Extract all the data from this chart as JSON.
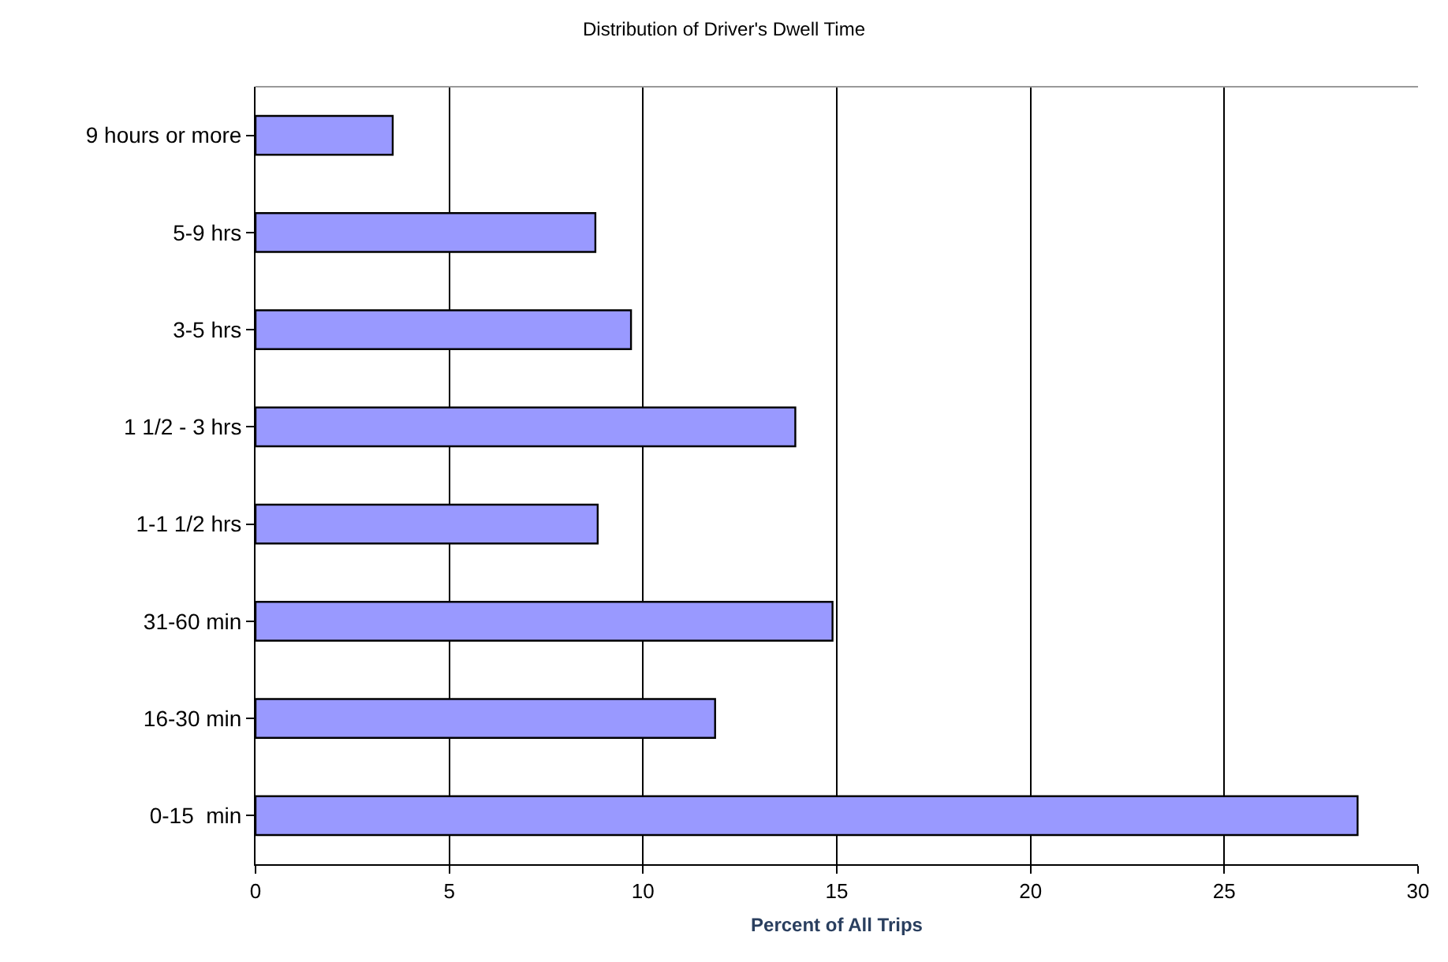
{
  "chart_data": {
    "type": "bar",
    "orientation": "horizontal",
    "title": "Distribution of Driver's Dwell Time",
    "xlabel": "Percent of All Trips",
    "categories": [
      "9 hours or more",
      "5-9 hrs",
      "3-5 hrs",
      "1 1/2 - 3 hrs",
      "1-1 1/2 hrs",
      "31-60 min",
      "16-30 min",
      "0-15  min"
    ],
    "values": [
      3.54,
      8.77,
      9.69,
      13.93,
      8.83,
      14.89,
      11.86,
      28.44
    ],
    "color": "#9999ff",
    "xlim": [
      0,
      30
    ],
    "xticks": [
      0,
      5,
      10,
      15,
      20,
      25,
      30
    ],
    "grid": "x",
    "legend": false
  }
}
